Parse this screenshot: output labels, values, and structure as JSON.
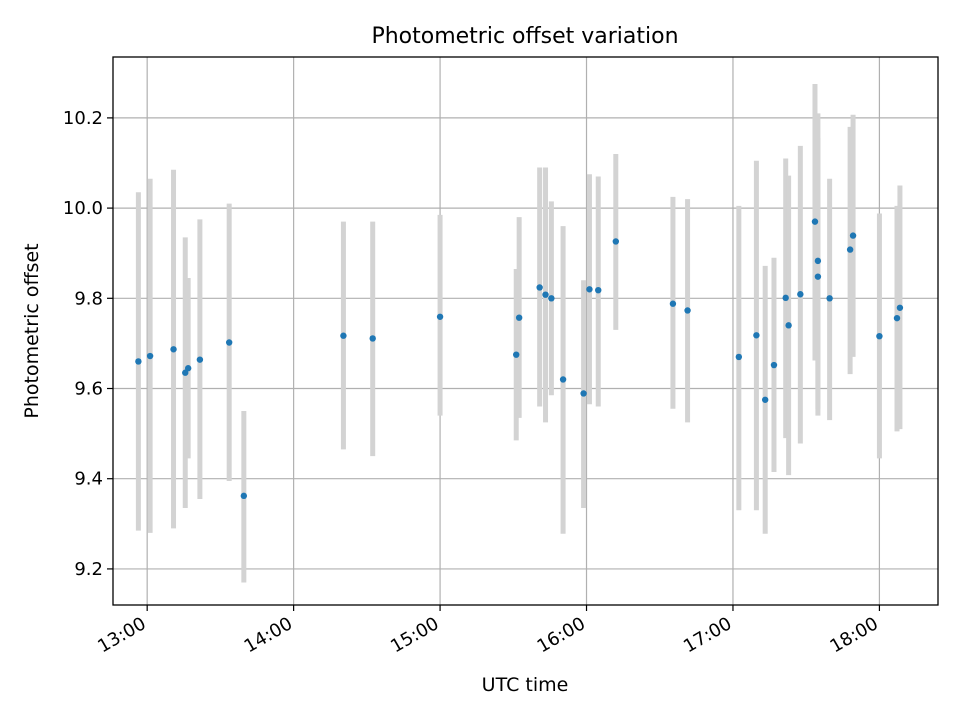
{
  "chart_data": {
    "type": "scatter",
    "title": "Photometric offset variation",
    "xlabel": "UTC time",
    "ylabel": "Photometric offset",
    "x_unit": "UTC time (HH:MM)",
    "xlim": [
      "12:46",
      "18:24"
    ],
    "ylim": [
      9.12,
      10.335
    ],
    "x_ticks": [
      "13:00",
      "14:00",
      "15:00",
      "16:00",
      "17:00",
      "18:00"
    ],
    "y_ticks": [
      "9.2",
      "9.4",
      "9.6",
      "9.8",
      "10.0",
      "10.2"
    ],
    "grid": true,
    "legend": "none",
    "point_color": "#1f77b4",
    "errorbar_color": "#d3d3d3",
    "series": [
      {
        "points": [
          {
            "x": "12:56:24",
            "y": 9.66,
            "yerr_low": 9.285,
            "yerr_high": 10.035
          },
          {
            "x": "13:01:12",
            "y": 9.672,
            "yerr_low": 9.28,
            "yerr_high": 10.065
          },
          {
            "x": "13:10:48",
            "y": 9.687,
            "yerr_low": 9.29,
            "yerr_high": 10.085
          },
          {
            "x": "13:15:36",
            "y": 9.635,
            "yerr_low": 9.335,
            "yerr_high": 9.935
          },
          {
            "x": "13:16:48",
            "y": 9.645,
            "yerr_low": 9.445,
            "yerr_high": 9.845
          },
          {
            "x": "13:21:36",
            "y": 9.664,
            "yerr_low": 9.355,
            "yerr_high": 9.975
          },
          {
            "x": "13:33:36",
            "y": 9.702,
            "yerr_low": 9.395,
            "yerr_high": 10.01
          },
          {
            "x": "13:39:36",
            "y": 9.362,
            "yerr_low": 9.17,
            "yerr_high": 9.55
          },
          {
            "x": "14:20:24",
            "y": 9.717,
            "yerr_low": 9.465,
            "yerr_high": 9.97
          },
          {
            "x": "14:32:24",
            "y": 9.711,
            "yerr_low": 9.45,
            "yerr_high": 9.97
          },
          {
            "x": "15:00:00",
            "y": 9.759,
            "yerr_low": 9.54,
            "yerr_high": 9.985
          },
          {
            "x": "15:31:12",
            "y": 9.675,
            "yerr_low": 9.485,
            "yerr_high": 9.865
          },
          {
            "x": "15:32:24",
            "y": 9.757,
            "yerr_low": 9.535,
            "yerr_high": 9.98
          },
          {
            "x": "15:40:48",
            "y": 9.824,
            "yerr_low": 9.56,
            "yerr_high": 10.09
          },
          {
            "x": "15:43:12",
            "y": 9.808,
            "yerr_low": 9.525,
            "yerr_high": 10.09
          },
          {
            "x": "15:45:36",
            "y": 9.8,
            "yerr_low": 9.585,
            "yerr_high": 10.015
          },
          {
            "x": "15:50:24",
            "y": 9.62,
            "yerr_low": 9.278,
            "yerr_high": 9.96
          },
          {
            "x": "15:58:48",
            "y": 9.589,
            "yerr_low": 9.335,
            "yerr_high": 9.84
          },
          {
            "x": "16:01:12",
            "y": 9.82,
            "yerr_low": 9.565,
            "yerr_high": 10.075
          },
          {
            "x": "16:04:48",
            "y": 9.818,
            "yerr_low": 9.56,
            "yerr_high": 10.07
          },
          {
            "x": "16:12:00",
            "y": 9.926,
            "yerr_low": 9.73,
            "yerr_high": 10.12
          },
          {
            "x": "16:35:24",
            "y": 9.788,
            "yerr_low": 9.555,
            "yerr_high": 10.025
          },
          {
            "x": "16:41:24",
            "y": 9.773,
            "yerr_low": 9.525,
            "yerr_high": 10.02
          },
          {
            "x": "17:02:24",
            "y": 9.67,
            "yerr_low": 9.33,
            "yerr_high": 10.005
          },
          {
            "x": "17:09:36",
            "y": 9.718,
            "yerr_low": 9.33,
            "yerr_high": 10.105
          },
          {
            "x": "17:13:12",
            "y": 9.575,
            "yerr_low": 9.278,
            "yerr_high": 9.872
          },
          {
            "x": "17:16:48",
            "y": 9.652,
            "yerr_low": 9.415,
            "yerr_high": 9.89
          },
          {
            "x": "17:21:36",
            "y": 9.801,
            "yerr_low": 9.49,
            "yerr_high": 10.11
          },
          {
            "x": "17:22:48",
            "y": 9.74,
            "yerr_low": 9.408,
            "yerr_high": 10.072
          },
          {
            "x": "17:27:36",
            "y": 9.809,
            "yerr_low": 9.478,
            "yerr_high": 10.138
          },
          {
            "x": "17:33:36",
            "y": 9.97,
            "yerr_low": 9.662,
            "yerr_high": 10.275
          },
          {
            "x": "17:34:48",
            "y": 9.848,
            "yerr_low": 9.54,
            "yerr_high": 10.155
          },
          {
            "x": "17:34:48",
            "y": 9.883,
            "yerr_low": 9.555,
            "yerr_high": 10.21
          },
          {
            "x": "17:39:36",
            "y": 9.8,
            "yerr_low": 9.53,
            "yerr_high": 10.065
          },
          {
            "x": "17:48:00",
            "y": 9.908,
            "yerr_low": 9.632,
            "yerr_high": 10.18
          },
          {
            "x": "17:49:12",
            "y": 9.939,
            "yerr_low": 9.67,
            "yerr_high": 10.207
          },
          {
            "x": "18:00:00",
            "y": 9.716,
            "yerr_low": 9.445,
            "yerr_high": 9.988
          },
          {
            "x": "18:07:12",
            "y": 9.756,
            "yerr_low": 9.505,
            "yerr_high": 10.005
          },
          {
            "x": "18:08:24",
            "y": 9.779,
            "yerr_low": 9.51,
            "yerr_high": 10.05
          }
        ]
      }
    ]
  }
}
